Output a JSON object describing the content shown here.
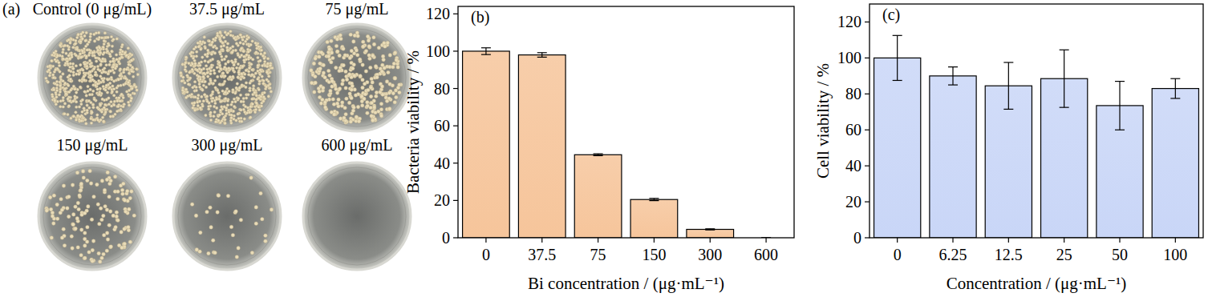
{
  "chart_data": [
    {
      "type": "image",
      "title": "(a)",
      "categories": [
        "Control (0 μg/mL)",
        "37.5 μg/mL",
        "75 μg/mL",
        "150 μg/mL",
        "300 μg/mL",
        "600 μg/mL"
      ]
    },
    {
      "type": "bar",
      "title": "(b)",
      "x_label": "Bi concentration / (μg·mL⁻¹)",
      "y_label": "Bacteria viability / %",
      "categories": [
        "0",
        "37.5",
        "75",
        "150",
        "300",
        "600"
      ],
      "values": [
        100,
        98,
        44.5,
        20.5,
        4.5,
        0
      ],
      "errors": [
        1.8,
        1.2,
        0.5,
        0.6,
        0.3,
        0
      ],
      "color": "#f6c59b",
      "ylim": [
        0,
        124
      ],
      "yticks": [
        0,
        20,
        40,
        60,
        80,
        100,
        120
      ]
    },
    {
      "type": "bar",
      "title": "(c)",
      "x_label": "Concentration / (μg·mL⁻¹)",
      "y_label": "Cell viability / %",
      "categories": [
        "0",
        "6.25",
        "12.5",
        "25",
        "50",
        "100"
      ],
      "values": [
        100,
        90,
        84.5,
        88.5,
        73.5,
        83
      ],
      "errors": [
        12.5,
        5,
        13,
        16,
        13.5,
        5.5
      ],
      "color": "#c9d6f7",
      "ylim": [
        0,
        130
      ],
      "yticks": [
        0,
        20,
        40,
        60,
        80,
        100,
        120
      ]
    }
  ]
}
